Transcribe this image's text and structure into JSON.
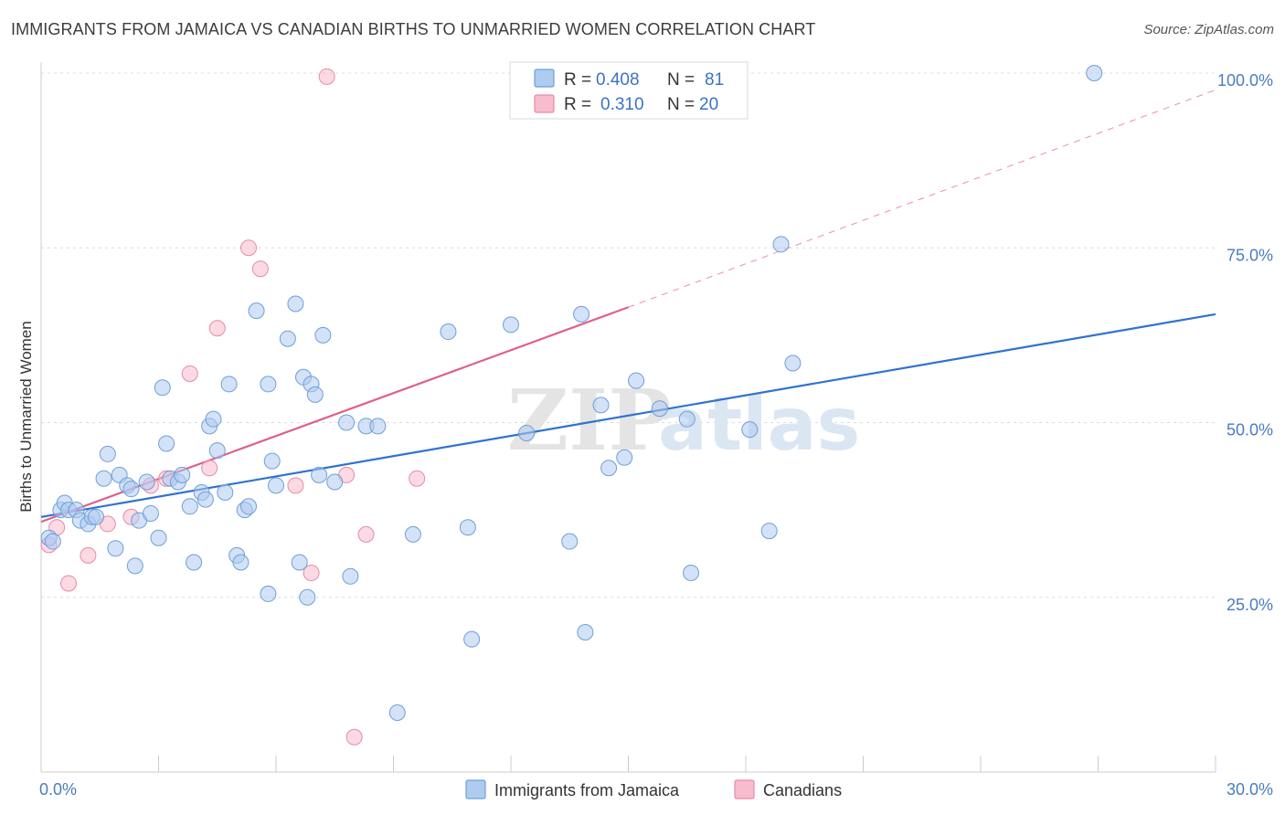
{
  "header": {
    "title": "IMMIGRANTS FROM JAMAICA VS CANADIAN BIRTHS TO UNMARRIED WOMEN CORRELATION CHART",
    "source": "Source: ZipAtlas.com"
  },
  "watermark": {
    "zip": "ZIP",
    "atlas": "atlas"
  },
  "legend": {
    "rows": [
      {
        "r_label": "R =",
        "r_value": "0.408",
        "n_label": "N =",
        "n_value": "81",
        "color": "#aecbf0"
      },
      {
        "r_label": "R =",
        "r_value": "0.310",
        "n_label": "N =",
        "n_value": "20",
        "color": "#f7bccd"
      }
    ]
  },
  "chart_data": {
    "type": "scatter",
    "title": "IMMIGRANTS FROM JAMAICA VS CANADIAN BIRTHS TO UNMARRIED WOMEN CORRELATION CHART",
    "xlabel": "",
    "ylabel": "Births to Unmarried Women",
    "xlim": [
      0,
      30
    ],
    "ylim": [
      0,
      102
    ],
    "x_tick_labels": [
      {
        "value": 0,
        "label": "0.0%"
      },
      {
        "value": 30,
        "label": "30.0%"
      }
    ],
    "y_tick_labels": [
      {
        "value": 25,
        "label": "25.0%"
      },
      {
        "value": 50,
        "label": "50.0%"
      },
      {
        "value": 75,
        "label": "75.0%"
      },
      {
        "value": 100,
        "label": "100.0%"
      }
    ],
    "series": [
      {
        "name": "Immigrants from Jamaica",
        "color": "#aecbf0",
        "stroke": "#6f9fd8",
        "trend": {
          "x0": 0,
          "y0": 36.5,
          "x1": 30,
          "y1": 65.5,
          "color": "#2f72d0"
        },
        "points": [
          [
            0.2,
            33.5
          ],
          [
            0.3,
            33
          ],
          [
            0.5,
            37.5
          ],
          [
            0.6,
            38.5
          ],
          [
            0.7,
            37.5
          ],
          [
            0.9,
            37.5
          ],
          [
            1.0,
            36
          ],
          [
            1.2,
            35.5
          ],
          [
            1.3,
            36.5
          ],
          [
            1.4,
            36.5
          ],
          [
            1.6,
            42
          ],
          [
            1.7,
            45.5
          ],
          [
            1.9,
            32
          ],
          [
            2.0,
            42.5
          ],
          [
            2.2,
            41
          ],
          [
            2.3,
            40.5
          ],
          [
            2.4,
            29.5
          ],
          [
            2.5,
            36
          ],
          [
            2.7,
            41.5
          ],
          [
            2.8,
            37
          ],
          [
            3.0,
            33.5
          ],
          [
            3.1,
            55
          ],
          [
            3.2,
            47
          ],
          [
            3.3,
            42
          ],
          [
            3.5,
            41.5
          ],
          [
            3.6,
            42.5
          ],
          [
            3.8,
            38
          ],
          [
            3.9,
            30
          ],
          [
            4.1,
            40
          ],
          [
            4.2,
            39
          ],
          [
            4.3,
            49.5
          ],
          [
            4.4,
            50.5
          ],
          [
            4.5,
            46
          ],
          [
            4.7,
            40
          ],
          [
            4.8,
            55.5
          ],
          [
            5.0,
            31
          ],
          [
            5.1,
            30
          ],
          [
            5.2,
            37.5
          ],
          [
            5.3,
            38
          ],
          [
            5.5,
            66
          ],
          [
            5.8,
            25.5
          ],
          [
            5.8,
            55.5
          ],
          [
            5.9,
            44.5
          ],
          [
            6.0,
            41
          ],
          [
            6.3,
            62
          ],
          [
            6.5,
            67
          ],
          [
            6.6,
            30
          ],
          [
            6.7,
            56.5
          ],
          [
            6.8,
            25
          ],
          [
            6.9,
            55.5
          ],
          [
            7.0,
            54
          ],
          [
            7.1,
            42.5
          ],
          [
            7.2,
            62.5
          ],
          [
            7.5,
            41.5
          ],
          [
            7.8,
            50
          ],
          [
            7.9,
            28
          ],
          [
            8.3,
            49.5
          ],
          [
            8.6,
            49.5
          ],
          [
            9.1,
            8.5
          ],
          [
            9.5,
            34
          ],
          [
            10.4,
            63
          ],
          [
            10.9,
            35
          ],
          [
            11.0,
            19
          ],
          [
            12.0,
            64
          ],
          [
            12.4,
            48.5
          ],
          [
            13.5,
            33
          ],
          [
            13.8,
            65.5
          ],
          [
            13.9,
            20
          ],
          [
            14.3,
            52.5
          ],
          [
            14.5,
            43.5
          ],
          [
            14.9,
            45
          ],
          [
            15.2,
            56
          ],
          [
            15.8,
            52
          ],
          [
            16.5,
            50.5
          ],
          [
            16.6,
            28.5
          ],
          [
            18.1,
            49
          ],
          [
            18.6,
            34.5
          ],
          [
            18.9,
            75.5
          ],
          [
            19.2,
            58.5
          ],
          [
            26.9,
            100
          ]
        ]
      },
      {
        "name": "Canadians",
        "color": "#f7bccd",
        "stroke": "#e88aa7",
        "trend": {
          "x0": 0,
          "y0": 35.8,
          "x1": 15,
          "y1": 66.5,
          "x2": 30,
          "y2": 97.6,
          "color": "#e0608a"
        },
        "points": [
          [
            0.2,
            32.5
          ],
          [
            0.4,
            35
          ],
          [
            0.7,
            27
          ],
          [
            1.2,
            31
          ],
          [
            1.7,
            35.5
          ],
          [
            2.3,
            36.5
          ],
          [
            2.8,
            41
          ],
          [
            3.2,
            42
          ],
          [
            3.8,
            57
          ],
          [
            4.3,
            43.5
          ],
          [
            4.5,
            63.5
          ],
          [
            5.3,
            75
          ],
          [
            5.6,
            72
          ],
          [
            6.5,
            41
          ],
          [
            6.9,
            28.5
          ],
          [
            7.3,
            99.5
          ],
          [
            7.8,
            42.5
          ],
          [
            8.0,
            5
          ],
          [
            8.3,
            34
          ],
          [
            9.6,
            42
          ]
        ]
      }
    ]
  },
  "bottom_legend": {
    "items": [
      {
        "label": "Immigrants from Jamaica",
        "color": "#aecbf0"
      },
      {
        "label": "Canadians",
        "color": "#f7bccd"
      }
    ]
  }
}
